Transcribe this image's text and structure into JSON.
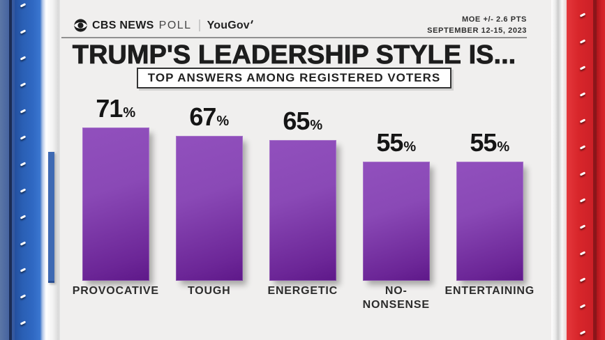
{
  "header": {
    "brand": {
      "cbs": "CBS NEWS",
      "poll": "POLL",
      "yougov": "YouGov"
    },
    "moe_line1": "MOE +/- 2.6 PTS",
    "moe_line2": "SEPTEMBER 12-15, 2023"
  },
  "title": "TRUMP'S LEADERSHIP STYLE IS...",
  "subtitle": "TOP ANSWERS AMONG REGISTERED VOTERS",
  "chart_data": {
    "type": "bar",
    "title": "TRUMP'S LEADERSHIP STYLE IS...",
    "subtitle": "TOP ANSWERS AMONG REGISTERED VOTERS",
    "categories": [
      "PROVOCATIVE",
      "TOUGH",
      "ENERGETIC",
      "NO-\nNONSENSE",
      "ENTERTAINING"
    ],
    "values": [
      71,
      67,
      65,
      55,
      55
    ],
    "unit": "%",
    "ylim": [
      0,
      100
    ],
    "grid": false,
    "legend": "none",
    "value_label_position": "above bars",
    "bar_color_top": "#8f4cba",
    "bar_color_bottom": "#5e1889",
    "label_color": "#2c2c2c",
    "value_color": "#151515"
  },
  "colors": {
    "content_bg": "#f0efee",
    "pillar_blue": "#2a5fb4",
    "pillar_red": "#d8262b",
    "title_text": "#1d1d1d",
    "subtitle_box_bg": "#ffffff",
    "subtitle_box_border": "#333333"
  }
}
